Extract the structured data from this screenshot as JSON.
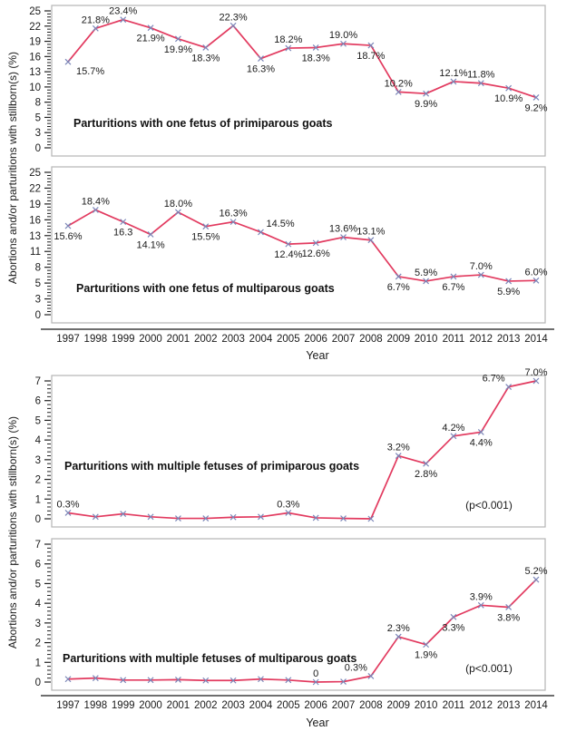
{
  "figure": {
    "ylabel_top_pair": "Abortions and/or parturitions with stillborn(s) (%)",
    "ylabel_bottom_pair": "Abortions and/or parturitions with stillborn(s) (%)",
    "xlabel_top_pair": "Year",
    "xlabel_bottom_pair": "Year",
    "line_color": "#e23a5f",
    "marker_color": "#7b86b8",
    "box_color": "#b5b5b5",
    "axis_color": "#3f3f3f",
    "text_color": "#1a1a1a",
    "years": [
      "1997",
      "1998",
      "1999",
      "2000",
      "2001",
      "2002",
      "2003",
      "2004",
      "2005",
      "2006",
      "2007",
      "2008",
      "2009",
      "2010",
      "2011",
      "2012",
      "2013",
      "2014"
    ]
  },
  "chart_data": [
    {
      "type": "line",
      "title": "Parturitions with one fetus of primiparous goats",
      "categories": [
        "1997",
        "1998",
        "1999",
        "2000",
        "2001",
        "2002",
        "2003",
        "2004",
        "2005",
        "2006",
        "2007",
        "2008",
        "2009",
        "2010",
        "2011",
        "2012",
        "2013",
        "2014"
      ],
      "values": [
        15.7,
        21.8,
        23.4,
        21.9,
        19.9,
        18.3,
        22.3,
        16.3,
        18.2,
        18.3,
        19.0,
        18.7,
        10.2,
        9.9,
        12.1,
        11.8,
        10.9,
        9.2
      ],
      "point_labels": [
        "15.7%",
        "21.8%",
        "23.4%",
        "21.9%",
        "19.9%",
        "18.3%",
        "22.3%",
        "16.3%",
        "18.2%",
        "18.3%",
        "19.0%",
        "18.7%",
        "10.2%",
        "9.9%",
        "12.1%",
        "11.8%",
        "10.9%",
        "9.2%"
      ],
      "label_pos": [
        "below-right",
        "above",
        "above",
        "below",
        "below",
        "below",
        "above",
        "below",
        "above",
        "below",
        "above",
        "below",
        "above",
        "below",
        "above",
        "above",
        "below",
        "below"
      ],
      "ylim": [
        0,
        25
      ],
      "ytick_labels": [
        "25",
        "22",
        "19",
        "16",
        "13",
        "10",
        "8",
        "5",
        "3",
        "0"
      ],
      "annotation": "",
      "grid": false,
      "legend": "none"
    },
    {
      "type": "line",
      "title": "Parturitions with one fetus of multiparous goats",
      "categories": [
        "1997",
        "1998",
        "1999",
        "2000",
        "2001",
        "2002",
        "2003",
        "2004",
        "2005",
        "2006",
        "2007",
        "2008",
        "2009",
        "2010",
        "2011",
        "2012",
        "2013",
        "2014"
      ],
      "values": [
        15.6,
        18.4,
        16.3,
        14.1,
        18.0,
        15.5,
        16.3,
        14.5,
        12.4,
        12.6,
        13.6,
        13.1,
        6.7,
        5.9,
        6.7,
        7.0,
        5.9,
        6.0
      ],
      "point_labels": [
        "15.6%",
        "18.4%",
        "16.3",
        "14.1%",
        "18.0%",
        "15.5%",
        "16.3%",
        "14.5%",
        "12.4%",
        "12.6%",
        "13.6%",
        "13.1%",
        "6.7%",
        "5.9%",
        "6.7%",
        "7.0%",
        "5.9%",
        "6.0%"
      ],
      "label_pos": [
        "below",
        "above",
        "below",
        "below",
        "above",
        "below",
        "above",
        "above-right",
        "below",
        "below",
        "above",
        "above",
        "below",
        "above",
        "below",
        "above",
        "below",
        "above"
      ],
      "ylim": [
        0,
        25
      ],
      "ytick_labels": [
        "25",
        "22",
        "19",
        "16",
        "13",
        "11",
        "8",
        "5",
        "3",
        "0"
      ],
      "annotation": "",
      "grid": false,
      "legend": "none"
    },
    {
      "type": "line",
      "title": "Parturitions with multiple fetuses of primiparous goats",
      "categories": [
        "1997",
        "1998",
        "1999",
        "2000",
        "2001",
        "2002",
        "2003",
        "2004",
        "2005",
        "2006",
        "2007",
        "2008",
        "2009",
        "2010",
        "2011",
        "2012",
        "2013",
        "2014"
      ],
      "values": [
        0.3,
        0.1,
        0.25,
        0.1,
        0.02,
        0.02,
        0.08,
        0.1,
        0.3,
        0.05,
        0.02,
        0,
        3.2,
        2.8,
        4.2,
        4.4,
        6.7,
        7.0
      ],
      "point_labels": [
        "0.3%",
        "",
        "",
        "",
        "",
        "",
        "",
        "",
        "0.3%",
        "",
        "",
        "",
        "3.2%",
        "2.8%",
        "4.2%",
        "4.4%",
        "6.7%",
        "7.0%"
      ],
      "label_pos": [
        "above",
        "",
        "",
        "",
        "",
        "",
        "",
        "",
        "above",
        "",
        "",
        "",
        "above",
        "below",
        "above",
        "below",
        "above-left",
        "above"
      ],
      "ylim": [
        0,
        7
      ],
      "ytick_labels": [
        "7",
        "6",
        "5",
        "4",
        "3",
        "2",
        "1",
        "0"
      ],
      "annotation": "(p<0.001)",
      "grid": false,
      "legend": "none"
    },
    {
      "type": "line",
      "title": "Parturitions with multiple fetuses of multiparous goats",
      "categories": [
        "1997",
        "1998",
        "1999",
        "2000",
        "2001",
        "2002",
        "2003",
        "2004",
        "2005",
        "2006",
        "2007",
        "2008",
        "2009",
        "2010",
        "2011",
        "2012",
        "2013",
        "2014"
      ],
      "values": [
        0.15,
        0.2,
        0.1,
        0.1,
        0.12,
        0.08,
        0.08,
        0.15,
        0.1,
        0,
        0.02,
        0.3,
        2.3,
        1.9,
        3.3,
        3.9,
        3.8,
        5.2
      ],
      "point_labels": [
        "",
        "",
        "",
        "",
        "",
        "",
        "",
        "",
        "",
        "0",
        "",
        "0.3%",
        "2.3%",
        "1.9%",
        "3.3%",
        "3.9%",
        "3.8%",
        "5.2%"
      ],
      "label_pos": [
        "",
        "",
        "",
        "",
        "",
        "",
        "",
        "",
        "",
        "above",
        "",
        "above-left",
        "above",
        "below",
        "below",
        "above",
        "below",
        "above"
      ],
      "ylim": [
        0,
        7
      ],
      "ytick_labels": [
        "7",
        "6",
        "5",
        "4",
        "3",
        "2",
        "1",
        "0"
      ],
      "annotation": "(p<0.001)",
      "grid": false,
      "legend": "none"
    }
  ]
}
